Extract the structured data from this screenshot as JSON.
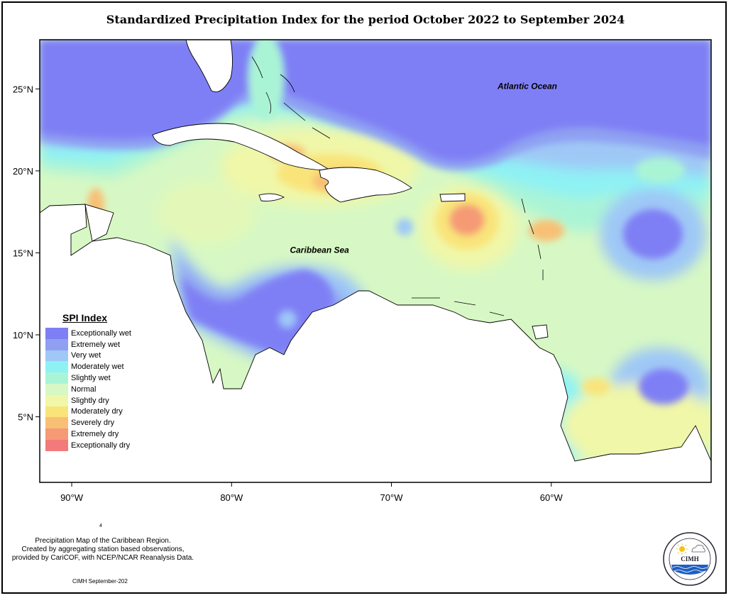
{
  "title": "Standardized Precipitation Index for the period October 2022 to September 2024",
  "map": {
    "lon_range": [
      -92,
      -50
    ],
    "lat_range": [
      1,
      28
    ],
    "lon_ticks": [
      {
        "value": -90,
        "label": "90°W"
      },
      {
        "value": -80,
        "label": "80°W"
      },
      {
        "value": -70,
        "label": "70°W"
      },
      {
        "value": -60,
        "label": "60°W"
      }
    ],
    "lat_ticks": [
      {
        "value": 25,
        "label": "25°N"
      },
      {
        "value": 20,
        "label": "20°N"
      },
      {
        "value": 15,
        "label": "15°N"
      },
      {
        "value": 10,
        "label": "10°N"
      },
      {
        "value": 5,
        "label": "5°N"
      }
    ],
    "labels": [
      {
        "text": "Atlantic Ocean",
        "lon": -61.5,
        "lat": 25.0
      },
      {
        "text": "Caribbean Sea",
        "lon": -74.5,
        "lat": 15.0
      }
    ]
  },
  "legend": {
    "title": "SPI Index",
    "items": [
      {
        "label": "Exceptionally wet",
        "color": "#7f7ff5"
      },
      {
        "label": "Extremely wet",
        "color": "#8fa0f2"
      },
      {
        "label": "Very wet",
        "color": "#9fc8f6"
      },
      {
        "label": "Moderately wet",
        "color": "#8ef2f4"
      },
      {
        "label": "Slightly wet",
        "color": "#aaf4d6"
      },
      {
        "label": "Normal",
        "color": "#d7f8c4"
      },
      {
        "label": "Slightly dry",
        "color": "#f0f7a8"
      },
      {
        "label": "Moderately dry",
        "color": "#f9e47a"
      },
      {
        "label": "Severely dry",
        "color": "#f8c074"
      },
      {
        "label": "Extremely dry",
        "color": "#f59a74"
      },
      {
        "label": "Exceptionally dry",
        "color": "#f27a7a"
      }
    ]
  },
  "credit": {
    "line1": "Precipitation Map of the Caribbean Region.",
    "line2": "Created by aggregating station based observations,",
    "line3": "provided by CariCOF, with NCEP/NCAR Reanalysis Data."
  },
  "figure_number": "4",
  "footer": "CIMH September-202",
  "logo": {
    "text": "CIMH",
    "ring_text": "Caribbean Institute for Meteorology and Hydrology",
    "icons": [
      "sun-icon",
      "cloud-icon",
      "wave-icon"
    ]
  }
}
